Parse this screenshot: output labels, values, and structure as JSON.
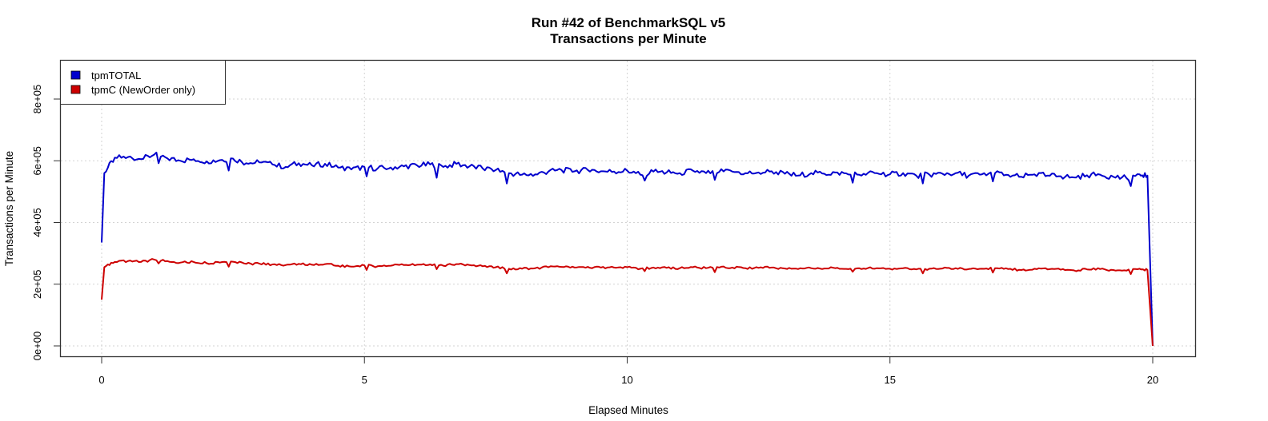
{
  "chart_data": {
    "type": "line",
    "title": "Run #42 of BenchmarkSQL v5",
    "subtitle": "Transactions per Minute",
    "xlabel": "Elapsed Minutes",
    "ylabel": "Transactions per Minute",
    "xlim": [
      -0.8,
      20.8
    ],
    "ylim": [
      -35000,
      950000
    ],
    "x_ticks": [
      0,
      5,
      10,
      15,
      20
    ],
    "x_tick_labels": [
      "0",
      "5",
      "10",
      "15",
      "20"
    ],
    "y_ticks": [
      0,
      200000,
      400000,
      600000,
      800000
    ],
    "y_tick_labels": [
      "0e+00",
      "2e+05",
      "4e+05",
      "6e+05",
      "8e+05"
    ],
    "grid": true,
    "legend_position": "topleft",
    "x": [
      0,
      0.05,
      0.25,
      0.5,
      0.75,
      1.0,
      1.25,
      1.5,
      1.75,
      2.0,
      2.25,
      2.5,
      2.75,
      3.0,
      3.25,
      3.5,
      3.75,
      4.0,
      4.25,
      4.5,
      4.75,
      5.0,
      5.25,
      5.5,
      5.75,
      6.0,
      6.25,
      6.5,
      6.75,
      7.0,
      7.25,
      7.5,
      7.75,
      8.0,
      8.25,
      8.5,
      8.75,
      9.0,
      9.25,
      9.5,
      9.75,
      10.0,
      10.25,
      10.5,
      10.75,
      11.0,
      11.25,
      11.5,
      11.75,
      12.0,
      12.25,
      12.5,
      12.75,
      13.0,
      13.25,
      13.5,
      13.75,
      14.0,
      14.25,
      14.5,
      14.75,
      15.0,
      15.25,
      15.5,
      15.75,
      16.0,
      16.25,
      16.5,
      16.75,
      17.0,
      17.25,
      17.5,
      17.75,
      18.0,
      18.25,
      18.5,
      18.75,
      19.0,
      19.25,
      19.5,
      19.75,
      19.9,
      20.0
    ],
    "series": [
      {
        "name": "tpmTOTAL",
        "color": "#0000CD",
        "values": [
          335000,
          560000,
          610000,
          612000,
          605000,
          620000,
          608000,
          600000,
          605000,
          598000,
          602000,
          607000,
          592000,
          595000,
          588000,
          580000,
          592000,
          585000,
          590000,
          578000,
          572000,
          580000,
          575000,
          578000,
          582000,
          585000,
          588000,
          580000,
          590000,
          582000,
          575000,
          570000,
          560000,
          555000,
          556000,
          565000,
          570000,
          566000,
          570000,
          566000,
          565000,
          568000,
          555000,
          565000,
          562000,
          560000,
          568000,
          560000,
          564000,
          565000,
          560000,
          562000,
          566000,
          558000,
          552000,
          560000,
          558000,
          562000,
          555000,
          558000,
          560000,
          556000,
          560000,
          552000,
          555000,
          558000,
          560000,
          552000,
          556000,
          560000,
          554000,
          548000,
          556000,
          552000,
          550000,
          546000,
          553000,
          555000,
          548000,
          544000,
          556000,
          552000,
          0
        ]
      },
      {
        "name": "tpmC (NewOrder only)",
        "color": "#CD0000",
        "values": [
          150000,
          255000,
          272000,
          275000,
          272000,
          280000,
          275000,
          270000,
          272000,
          268000,
          270000,
          273000,
          266000,
          267000,
          264000,
          262000,
          266000,
          263000,
          265000,
          260000,
          257000,
          261000,
          258000,
          260000,
          262000,
          263000,
          264000,
          260000,
          265000,
          262000,
          258000,
          255000,
          250000,
          250000,
          252000,
          255000,
          256000,
          254000,
          256000,
          254000,
          254000,
          255000,
          250000,
          254000,
          253000,
          252000,
          255000,
          252000,
          254000,
          254000,
          252000,
          253000,
          254000,
          251000,
          249000,
          252000,
          251000,
          253000,
          250000,
          251000,
          252000,
          250000,
          252000,
          248000,
          250000,
          251000,
          252000,
          249000,
          250000,
          252000,
          249000,
          246000,
          250000,
          248000,
          247000,
          245000,
          248000,
          249000,
          246000,
          244000,
          250000,
          246000,
          0
        ]
      }
    ]
  }
}
